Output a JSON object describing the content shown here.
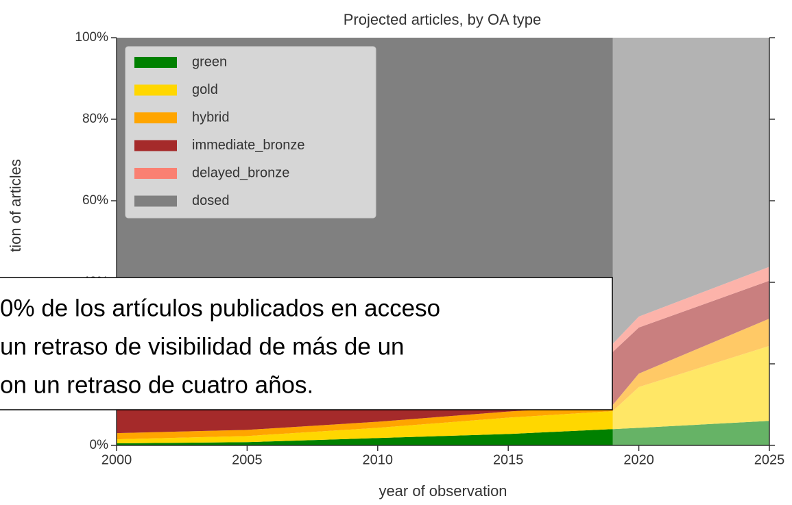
{
  "chart_data": {
    "type": "stacked_area",
    "title": "Projected articles, by OA type",
    "x_label": "year of observation",
    "y_label": "tion of articles",
    "x": [
      2000,
      2005,
      2010,
      2015,
      2019,
      2020,
      2025
    ],
    "projected_from": 2019,
    "series": [
      {
        "name": "green",
        "color": "#008000",
        "values": [
          0.5,
          0.8,
          1.8,
          2.8,
          4,
          4.3,
          6
        ]
      },
      {
        "name": "gold",
        "color": "#ffd700",
        "values": [
          1,
          1.5,
          2.5,
          4,
          4.4,
          10,
          18.4
        ]
      },
      {
        "name": "hybrid",
        "color": "#ffa500",
        "values": [
          1.5,
          1.5,
          1.5,
          1.5,
          1.5,
          3.3,
          6.7
        ]
      },
      {
        "name": "immediate_bronze",
        "color": "#a52a2a",
        "values": [
          10,
          10,
          11,
          12,
          13,
          11.3,
          9.3
        ]
      },
      {
        "name": "delayed_bronze",
        "color": "#fa8072",
        "values": [
          2,
          2,
          2,
          2,
          2,
          2.7,
          3.4
        ]
      },
      {
        "name": "dosed",
        "color": "#808080",
        "values": [
          85,
          84.2,
          81.2,
          77.7,
          75.1,
          68.4,
          56.2
        ]
      }
    ],
    "xlim": [
      2000,
      2025
    ],
    "xticks": [
      2000,
      2005,
      2010,
      2015,
      2020,
      2025
    ],
    "ylim": [
      0,
      100
    ],
    "yticks": [
      {
        "value": 0,
        "label": "0%"
      },
      {
        "value": 20,
        "label": "20%"
      },
      {
        "value": 40,
        "label": "40%"
      },
      {
        "value": 60,
        "label": "60%"
      },
      {
        "value": 80,
        "label": "80%"
      },
      {
        "value": 100,
        "label": "100%"
      }
    ],
    "legend": "upper left",
    "annotation": [
      "0% de los artículos publicados en acceso",
      "un retraso de visibilidad de más de un",
      "on un retraso de cuatro años."
    ]
  }
}
